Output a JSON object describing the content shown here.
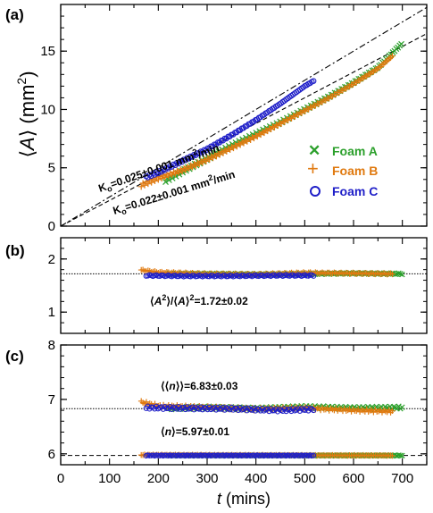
{
  "colors": {
    "foam_a": "#2ca02c",
    "foam_b": "#e07a10",
    "foam_c": "#1f1fc8",
    "axis": "#000000"
  },
  "chart_data": [
    {
      "panel": "(a)",
      "type": "scatter",
      "ylabel_parts": [
        "⟨",
        "A",
        "⟩ (mm",
        "2",
        ")"
      ],
      "xlim": [
        0,
        750
      ],
      "ylim": [
        0,
        19
      ],
      "yticks": [
        0,
        5,
        10,
        15
      ],
      "legend_position": "right",
      "series": [
        {
          "name": "Foam A",
          "marker": "x",
          "x": [
            215,
            250,
            300,
            350,
            400,
            450,
            500,
            550,
            600,
            650,
            700
          ],
          "y": [
            3.9,
            4.7,
            5.8,
            6.9,
            7.9,
            8.9,
            10.0,
            11.1,
            12.3,
            13.6,
            15.7
          ]
        },
        {
          "name": "Foam B",
          "marker": "+",
          "x": [
            165,
            200,
            250,
            300,
            350,
            400,
            450,
            500,
            550,
            600,
            650,
            680
          ],
          "y": [
            3.5,
            4.1,
            4.8,
            5.7,
            6.7,
            7.7,
            8.8,
            9.9,
            11.0,
            12.2,
            13.5,
            14.6
          ]
        },
        {
          "name": "Foam C",
          "marker": "o",
          "x": [
            175,
            200,
            250,
            300,
            350,
            400,
            450,
            500,
            520
          ],
          "y": [
            4.2,
            4.6,
            5.6,
            6.6,
            7.8,
            9.1,
            10.5,
            12.0,
            12.5
          ]
        }
      ],
      "fit_lines": [
        {
          "label_prefix": "K",
          "label_sub": "o",
          "label_rest": "=0.025±0.001 mm",
          "label_sup": "2",
          "label_tail": "/min",
          "slope": 0.025
        },
        {
          "label_prefix": "K",
          "label_sub": "o",
          "label_rest": "=0.022±0.001 mm",
          "label_sup": "2",
          "label_tail": "/min",
          "slope": 0.022
        }
      ]
    },
    {
      "panel": "(b)",
      "type": "scatter",
      "xlim": [
        0,
        750
      ],
      "ylim": [
        0.6,
        2.4
      ],
      "yticks": [
        1,
        2
      ],
      "reference_line": 1.72,
      "annotation_parts": [
        "⟨",
        "A",
        "2",
        "⟩/⟨",
        "A",
        "⟩",
        "2",
        "=1.72±0.02"
      ],
      "series": [
        {
          "name": "Foam A",
          "x": [
            220,
            300,
            400,
            500,
            600,
            700
          ],
          "y": [
            1.72,
            1.72,
            1.71,
            1.72,
            1.73,
            1.72
          ]
        },
        {
          "name": "Foam B",
          "x": [
            165,
            200,
            300,
            400,
            500,
            600,
            680
          ],
          "y": [
            1.79,
            1.75,
            1.72,
            1.71,
            1.74,
            1.73,
            1.72
          ]
        },
        {
          "name": "Foam C",
          "x": [
            175,
            250,
            350,
            450,
            520
          ],
          "y": [
            1.69,
            1.68,
            1.68,
            1.69,
            1.69
          ]
        }
      ]
    },
    {
      "panel": "(c)",
      "type": "scatter",
      "xlim": [
        0,
        750
      ],
      "xlabel_italic": "t",
      "xlabel_rest": "  (mins)",
      "xticks": [
        0,
        100,
        200,
        300,
        400,
        500,
        600,
        700
      ],
      "ylim": [
        5.8,
        8.0
      ],
      "yticks": [
        6,
        7,
        8
      ],
      "reference_lines": [
        6.83,
        5.97
      ],
      "annotations": [
        {
          "parts": [
            "⟨⟨",
            "n",
            "⟩⟩=6.83±0.03"
          ],
          "y": 7.2
        },
        {
          "parts": [
            "⟨",
            "n",
            "⟩=5.97±0.01"
          ],
          "y": 6.15
        }
      ],
      "series": [
        {
          "name": "Foam A",
          "upper": {
            "x": [
              220,
              300,
              400,
              500,
              600,
              700
            ],
            "y": [
              6.84,
              6.85,
              6.83,
              6.86,
              6.84,
              6.85
            ]
          },
          "lower": {
            "x": [
              220,
              700
            ],
            "y": [
              5.97,
              5.97
            ]
          }
        },
        {
          "name": "Foam B",
          "upper": {
            "x": [
              165,
              200,
              300,
              400,
              500,
              600,
              680
            ],
            "y": [
              6.95,
              6.88,
              6.85,
              6.82,
              6.84,
              6.8,
              6.78
            ]
          },
          "lower": {
            "x": [
              165,
              680
            ],
            "y": [
              5.98,
              5.97
            ]
          }
        },
        {
          "name": "Foam C",
          "upper": {
            "x": [
              175,
              250,
              350,
              450,
              520
            ],
            "y": [
              6.85,
              6.84,
              6.83,
              6.8,
              6.82
            ]
          },
          "lower": {
            "x": [
              175,
              520
            ],
            "y": [
              5.97,
              5.97
            ]
          }
        }
      ]
    }
  ]
}
